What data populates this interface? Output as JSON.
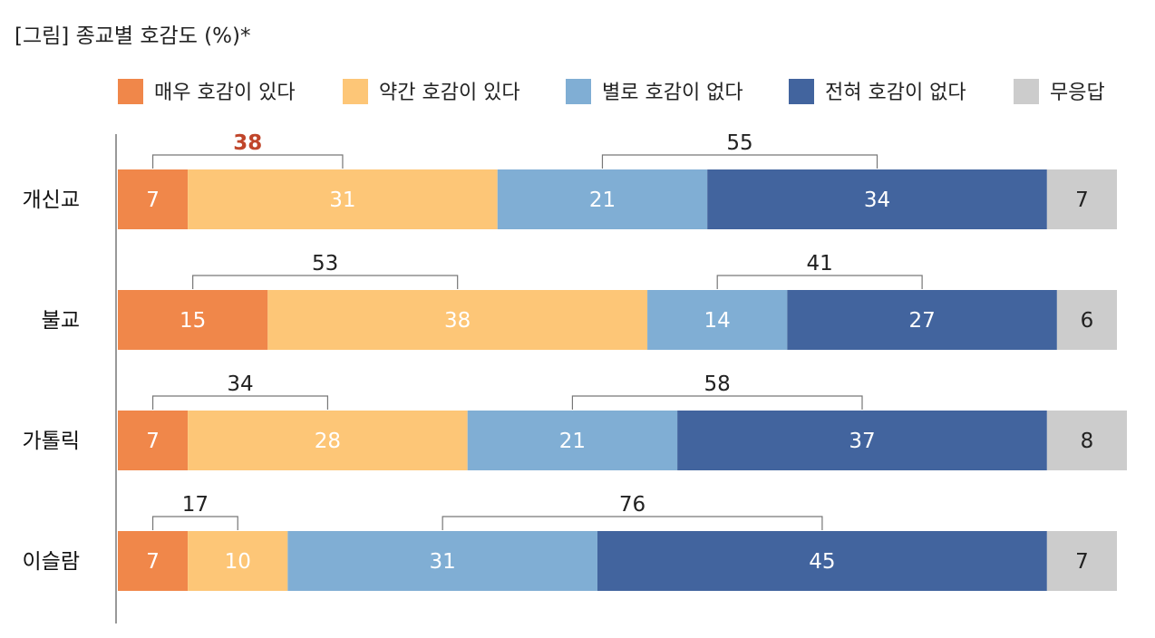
{
  "chart_data": {
    "type": "bar",
    "orientation": "horizontal",
    "stacked": true,
    "title": "[그림] 종교별 호감도 (%)*",
    "categories": [
      "개신교",
      "불교",
      "가톨릭",
      "이슬람"
    ],
    "series": [
      {
        "name": "매우 호감이 있다",
        "color": "#f0874a",
        "label_color": "#ffffff",
        "values": [
          7,
          15,
          7,
          7
        ]
      },
      {
        "name": "약간 호감이 있다",
        "color": "#fdc677",
        "label_color": "#ffffff",
        "values": [
          31,
          38,
          28,
          10
        ]
      },
      {
        "name": "별로 호감이 없다",
        "color": "#80aed4",
        "label_color": "#ffffff",
        "values": [
          21,
          14,
          21,
          31
        ]
      },
      {
        "name": "전혀 호감이 없다",
        "color": "#42649e",
        "label_color": "#ffffff",
        "values": [
          34,
          27,
          37,
          45
        ]
      },
      {
        "name": "무응답",
        "color": "#cccccc",
        "label_color": "#222222",
        "values": [
          7,
          6,
          8,
          7
        ]
      }
    ],
    "totals": [
      100,
      100,
      100,
      100
    ],
    "brackets": {
      "positive": {
        "values": [
          38,
          53,
          34,
          17
        ],
        "highlight": [
          true,
          false,
          false,
          false
        ],
        "highlight_color": "#c0452a"
      },
      "negative": {
        "values": [
          55,
          41,
          58,
          76
        ]
      }
    },
    "legend": "top",
    "grid": false
  }
}
